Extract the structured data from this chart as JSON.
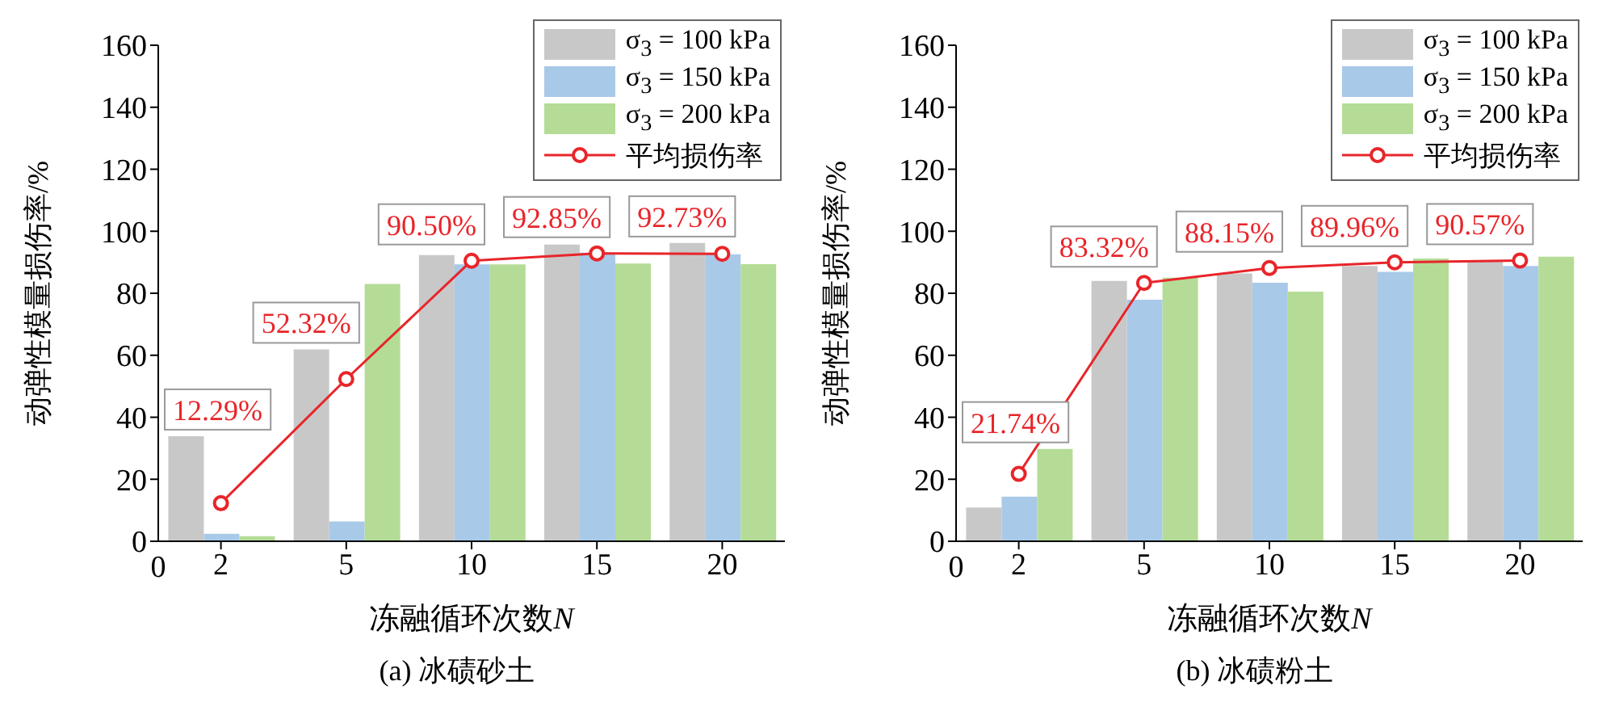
{
  "chart_data": [
    {
      "type": "bar",
      "title": "(a) 冰碛砂土",
      "xlabel": "冻融循环次数$_{}$N",
      "ylabel": "动弹性模量损伤率/%",
      "categories": [
        "2",
        "5",
        "10",
        "15",
        "20"
      ],
      "annotations": [
        "0"
      ],
      "ylim": [
        0,
        160
      ],
      "yticks": [
        0,
        20,
        40,
        60,
        80,
        100,
        120,
        140,
        160
      ],
      "grid": false,
      "legend": "top right",
      "series": [
        {
          "name": "σ$_{3}$ = 100 kPa",
          "color": "#c8c8c8",
          "values": [
            33.9,
            61.9,
            92.3,
            95.7,
            96.2
          ]
        },
        {
          "name": "σ$_{3}$ = 150 kPa",
          "color": "#a9c9e8",
          "values": [
            2.4,
            6.4,
            89.3,
            93.1,
            92.6
          ]
        },
        {
          "name": "σ$_{3}$ = 200 kPa",
          "color": "#b4dc96",
          "values": [
            1.6,
            83.0,
            89.3,
            89.6,
            89.4
          ]
        },
        {
          "name": "平均损伤率",
          "type": "line",
          "color": "#e8252a",
          "marker": "circle",
          "values": [
            12.29,
            52.32,
            90.5,
            92.85,
            92.73
          ],
          "value_labels": [
            "12.29%",
            "52.32%",
            "90.50%",
            "92.85%",
            "92.73%"
          ]
        }
      ]
    },
    {
      "type": "bar",
      "title": "(b) 冰碛粉土",
      "xlabel": "冻融循环次数$_{}$N",
      "ylabel": "动弹性模量损伤率/%",
      "categories": [
        "2",
        "5",
        "10",
        "15",
        "20"
      ],
      "annotations": [
        "0"
      ],
      "ylim": [
        0,
        160
      ],
      "yticks": [
        0,
        20,
        40,
        60,
        80,
        100,
        120,
        140,
        160
      ],
      "grid": false,
      "legend": "top right",
      "series": [
        {
          "name": "σ$_{3}$ = 100 kPa",
          "color": "#c8c8c8",
          "values": [
            10.9,
            84.0,
            86.4,
            88.8,
            90.4
          ]
        },
        {
          "name": "σ$_{3}$ = 150 kPa",
          "color": "#a9c9e8",
          "values": [
            14.4,
            77.9,
            83.4,
            86.9,
            88.8
          ]
        },
        {
          "name": "σ$_{3}$ = 200 kPa",
          "color": "#b4dc96",
          "values": [
            29.8,
            85.0,
            80.5,
            91.2,
            91.8
          ]
        },
        {
          "name": "平均损伤率",
          "type": "line",
          "color": "#e8252a",
          "marker": "circle",
          "values": [
            21.74,
            83.32,
            88.15,
            89.96,
            90.57
          ],
          "value_labels": [
            "21.74%",
            "83.32%",
            "88.15%",
            "89.96%",
            "90.57%"
          ]
        }
      ]
    }
  ]
}
